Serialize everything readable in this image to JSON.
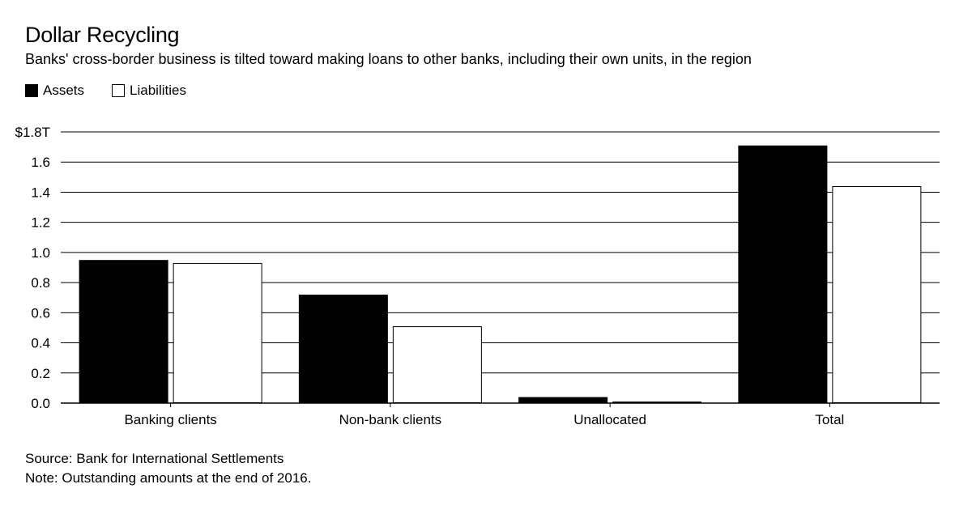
{
  "header": {
    "title": "Dollar Recycling",
    "subtitle": "Banks' cross-border business is tilted toward making loans to other banks, including their own units, in the region"
  },
  "legend": {
    "assets_label": "Assets",
    "liabilities_label": "Liabilities"
  },
  "footer": {
    "source": "Source: Bank for International Settlements",
    "note": "Note: Outstanding amounts at the end of 2016."
  },
  "colors": {
    "assets": "#000000",
    "liabilities": "#ffffff",
    "grid": "#000000"
  },
  "chart_data": {
    "type": "bar",
    "title": "Dollar Recycling",
    "xlabel": "",
    "ylabel": "",
    "categories": [
      "Banking clients",
      "Non-bank clients",
      "Unallocated",
      "Total"
    ],
    "series": [
      {
        "name": "Assets",
        "values": [
          0.95,
          0.72,
          0.04,
          1.71
        ]
      },
      {
        "name": "Liabilities",
        "values": [
          0.93,
          0.51,
          0.01,
          1.44
        ]
      }
    ],
    "ylim": [
      0,
      1.8
    ],
    "yticks": [
      0.0,
      0.2,
      0.4,
      0.6,
      0.8,
      1.0,
      1.2,
      1.4,
      1.6,
      1.8
    ],
    "ytick_labels": [
      "0.0",
      "0.2",
      "0.4",
      "0.6",
      "0.8",
      "1.0",
      "1.2",
      "1.4",
      "1.6",
      "$1.8T"
    ],
    "grid": true,
    "legend_position": "top-left"
  }
}
